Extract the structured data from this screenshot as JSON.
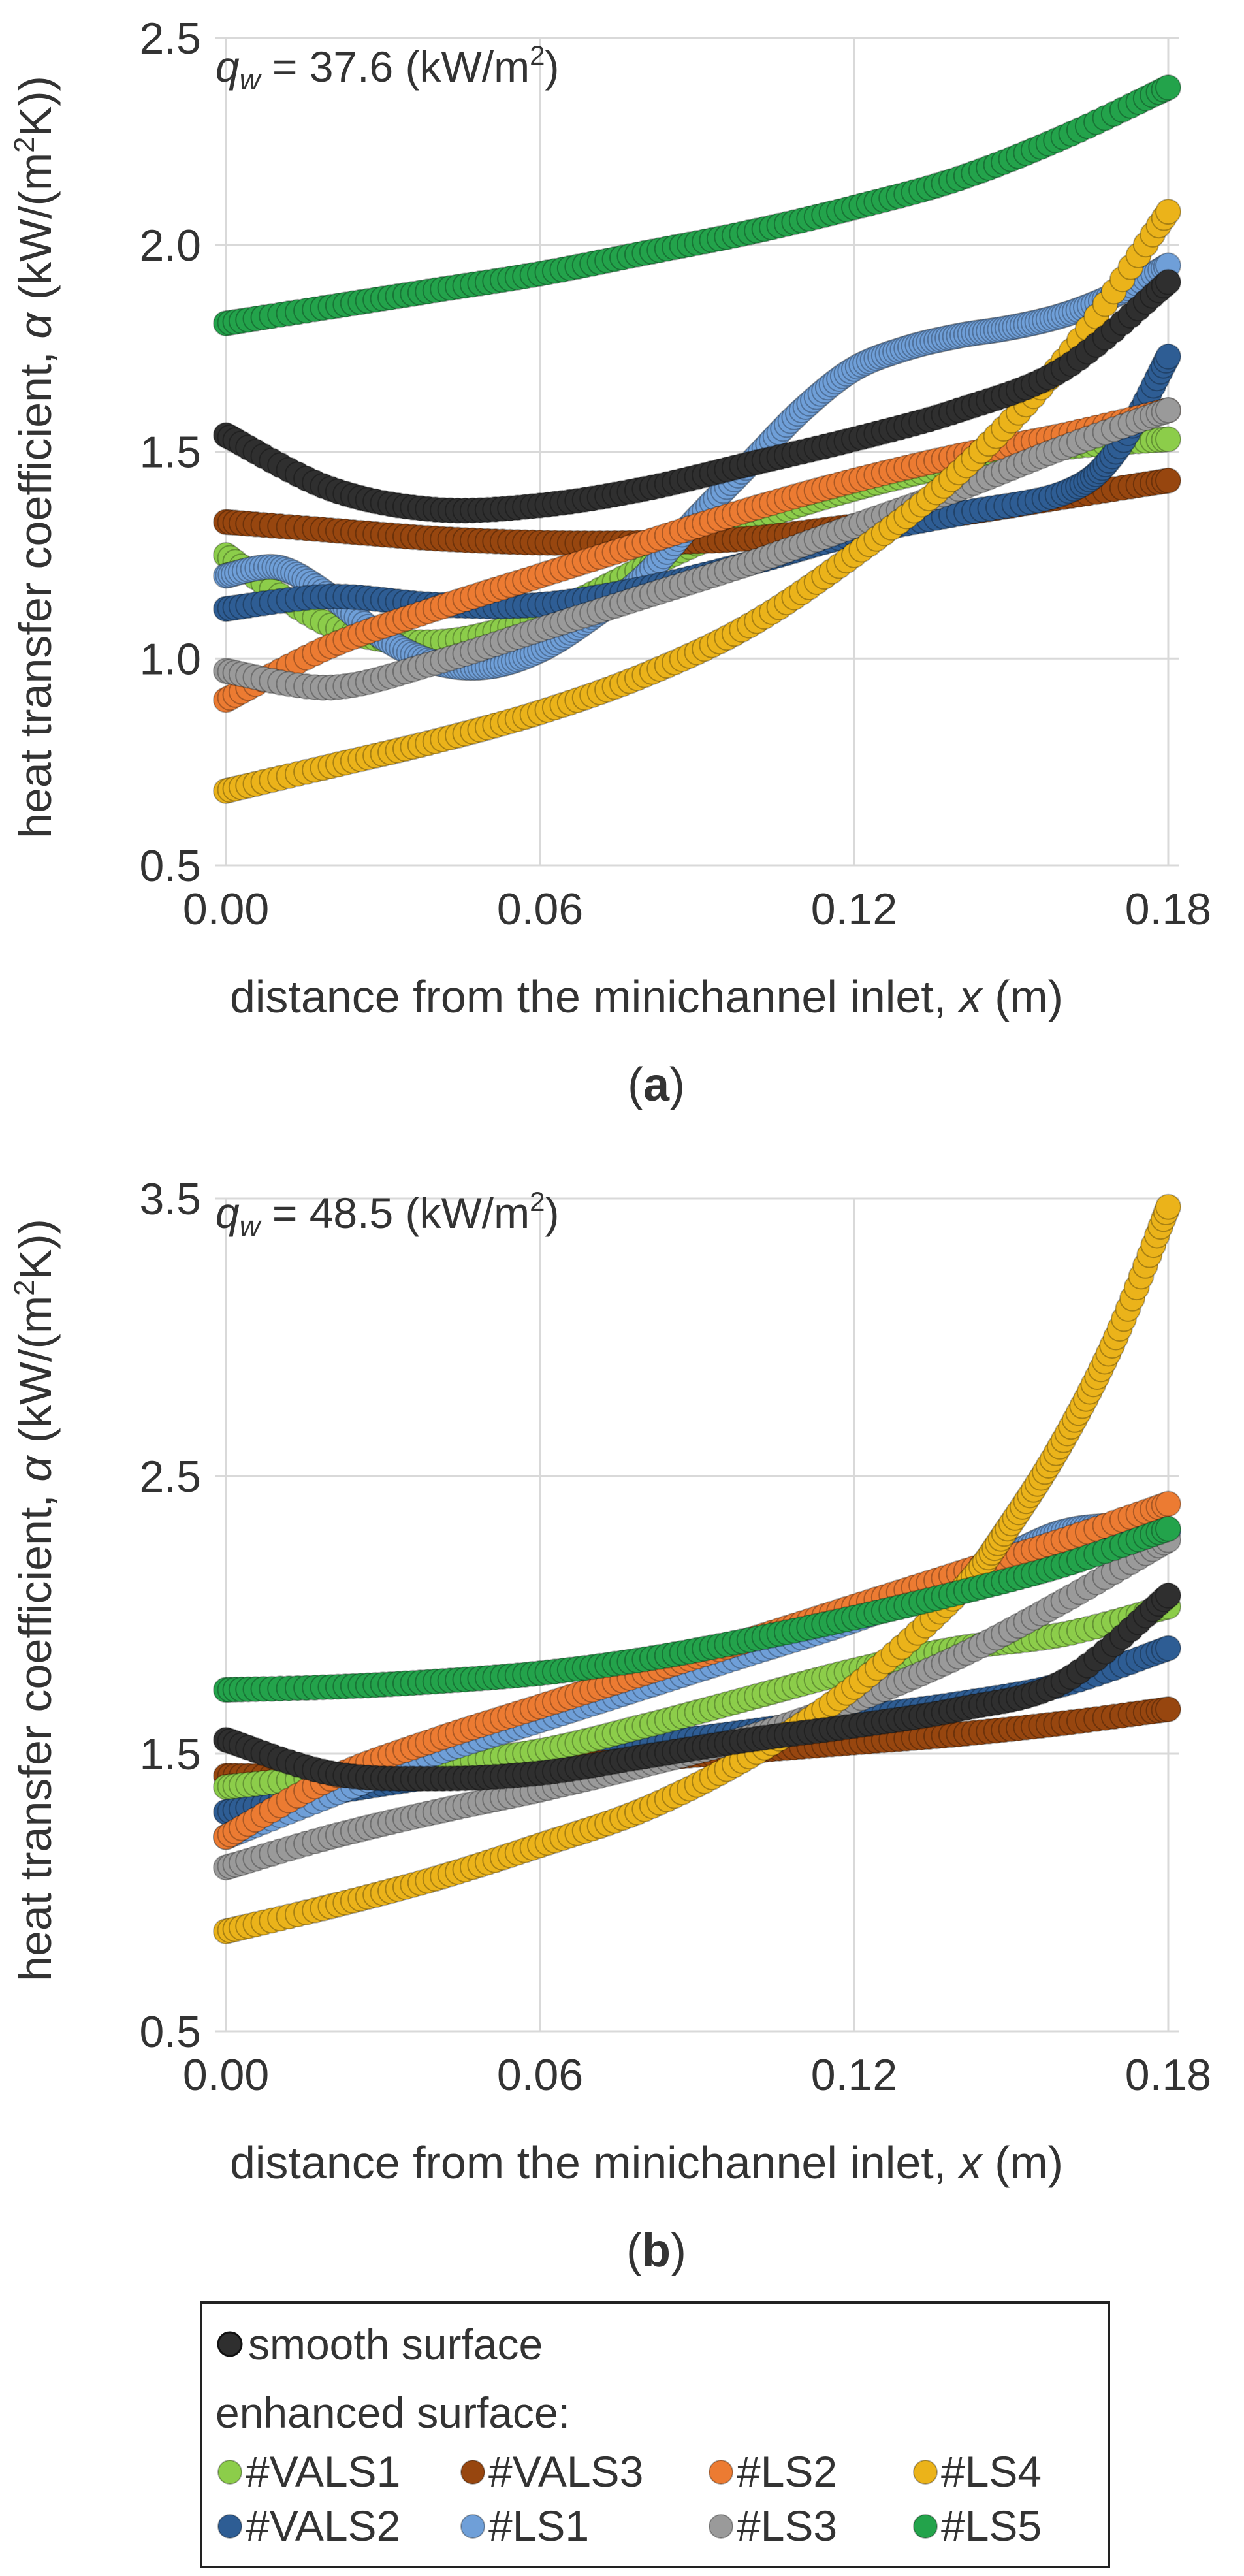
{
  "chart_data": [
    {
      "panel": "a",
      "type": "scatter",
      "annotation": {
        "q": "q",
        "sub": "w",
        "text": " = 37.6 (kW/m",
        "sup": "2",
        "end": ")"
      },
      "xlabel": {
        "text": "distance from the minichannel inlet, ",
        "var": "x",
        "unit": " (m)"
      },
      "ylabel": {
        "text": "heat transfer coefficient, ",
        "var": "α",
        "unit": " (kW/(m",
        "sup": "2",
        "end": "K))"
      },
      "xlim": [
        -0.002,
        0.182
      ],
      "ylim": [
        0.5,
        2.5
      ],
      "xticks": [
        "0.00",
        "0.06",
        "0.12",
        "0.18"
      ],
      "xtick_values": [
        0.0,
        0.06,
        0.12,
        0.18
      ],
      "yticks": [
        "0.5",
        "1.0",
        "1.5",
        "2.0",
        "2.5"
      ],
      "ytick_values": [
        0.5,
        1.0,
        1.5,
        2.0,
        2.5
      ],
      "series": [
        {
          "name": "#VALS1",
          "x": [
            0,
            0.02,
            0.04,
            0.06,
            0.08,
            0.1,
            0.12,
            0.14,
            0.16,
            0.18
          ],
          "y": [
            1.25,
            1.08,
            1.04,
            1.1,
            1.22,
            1.33,
            1.41,
            1.47,
            1.51,
            1.53
          ]
        },
        {
          "name": "#VALS3",
          "x": [
            0,
            0.02,
            0.04,
            0.06,
            0.08,
            0.1,
            0.12,
            0.14,
            0.16,
            0.18
          ],
          "y": [
            1.33,
            1.31,
            1.29,
            1.28,
            1.28,
            1.29,
            1.32,
            1.35,
            1.39,
            1.43
          ]
        },
        {
          "name": "#LS1",
          "x": [
            0,
            0.01,
            0.02,
            0.03,
            0.04,
            0.05,
            0.06,
            0.07,
            0.08,
            0.09,
            0.1,
            0.11,
            0.12,
            0.13,
            0.14,
            0.15,
            0.16,
            0.17,
            0.18
          ],
          "y": [
            1.2,
            1.22,
            1.15,
            1.05,
            0.99,
            0.98,
            1.02,
            1.1,
            1.2,
            1.34,
            1.47,
            1.6,
            1.7,
            1.75,
            1.78,
            1.8,
            1.83,
            1.88,
            1.95
          ]
        },
        {
          "name": "#VALS2",
          "x": [
            0,
            0.02,
            0.04,
            0.06,
            0.08,
            0.1,
            0.12,
            0.14,
            0.16,
            0.17,
            0.18
          ],
          "y": [
            1.12,
            1.15,
            1.13,
            1.13,
            1.17,
            1.23,
            1.3,
            1.35,
            1.4,
            1.5,
            1.73
          ]
        },
        {
          "name": "#LS2",
          "x": [
            0,
            0.02,
            0.04,
            0.06,
            0.08,
            0.1,
            0.12,
            0.14,
            0.16,
            0.18
          ],
          "y": [
            0.9,
            1.03,
            1.12,
            1.2,
            1.28,
            1.36,
            1.43,
            1.49,
            1.54,
            1.6
          ]
        },
        {
          "name": "#LS3",
          "x": [
            0,
            0.02,
            0.04,
            0.06,
            0.08,
            0.1,
            0.12,
            0.14,
            0.16,
            0.18
          ],
          "y": [
            0.97,
            0.93,
            0.99,
            1.07,
            1.15,
            1.23,
            1.32,
            1.41,
            1.51,
            1.6
          ]
        },
        {
          "name": "#LS4",
          "x": [
            0,
            0.02,
            0.04,
            0.06,
            0.08,
            0.1,
            0.12,
            0.14,
            0.16,
            0.18
          ],
          "y": [
            0.68,
            0.74,
            0.8,
            0.87,
            0.96,
            1.08,
            1.25,
            1.45,
            1.72,
            2.08
          ]
        },
        {
          "name": "smooth surface",
          "x": [
            0,
            0.02,
            0.04,
            0.06,
            0.08,
            0.1,
            0.12,
            0.14,
            0.16,
            0.18
          ],
          "y": [
            1.54,
            1.41,
            1.36,
            1.37,
            1.41,
            1.47,
            1.53,
            1.6,
            1.7,
            1.91
          ]
        },
        {
          "name": "#LS5",
          "x": [
            0,
            0.02,
            0.04,
            0.06,
            0.08,
            0.1,
            0.12,
            0.14,
            0.16,
            0.18
          ],
          "y": [
            1.81,
            1.85,
            1.89,
            1.93,
            1.98,
            2.03,
            2.09,
            2.16,
            2.26,
            2.38
          ]
        }
      ]
    },
    {
      "panel": "b",
      "type": "scatter",
      "annotation": {
        "q": "q",
        "sub": "w",
        "text": " = 48.5 (kW/m",
        "sup": "2",
        "end": ")"
      },
      "xlabel": {
        "text": "distance from the minichannel inlet, ",
        "var": "x",
        "unit": " (m)"
      },
      "ylabel": {
        "text": "heat transfer coefficient, ",
        "var": "α",
        "unit": " (kW/(m",
        "sup": "2",
        "end": "K))"
      },
      "xlim": [
        -0.002,
        0.182
      ],
      "ylim": [
        0.5,
        3.5
      ],
      "xticks": [
        "0.00",
        "0.06",
        "0.12",
        "0.18"
      ],
      "xtick_values": [
        0.0,
        0.06,
        0.12,
        0.18
      ],
      "yticks": [
        "0.5",
        "1.5",
        "2.5",
        "3.5"
      ],
      "ytick_values": [
        0.5,
        1.5,
        2.5,
        3.5
      ],
      "series": [
        {
          "name": "#VALS2",
          "x": [
            0,
            0.02,
            0.04,
            0.06,
            0.08,
            0.1,
            0.12,
            0.14,
            0.16,
            0.18
          ],
          "y": [
            1.29,
            1.36,
            1.42,
            1.48,
            1.53,
            1.58,
            1.63,
            1.68,
            1.75,
            1.88
          ]
        },
        {
          "name": "#VALS3",
          "x": [
            0,
            0.02,
            0.04,
            0.06,
            0.08,
            0.1,
            0.12,
            0.14,
            0.16,
            0.18
          ],
          "y": [
            1.42,
            1.42,
            1.43,
            1.45,
            1.48,
            1.51,
            1.54,
            1.57,
            1.61,
            1.66
          ]
        },
        {
          "name": "#VALS1",
          "x": [
            0,
            0.02,
            0.04,
            0.06,
            0.08,
            0.1,
            0.12,
            0.14,
            0.16,
            0.18
          ],
          "y": [
            1.38,
            1.42,
            1.46,
            1.51,
            1.6,
            1.7,
            1.8,
            1.88,
            1.93,
            2.03
          ]
        },
        {
          "name": "#LS1",
          "x": [
            0,
            0.02,
            0.04,
            0.06,
            0.08,
            0.1,
            0.12,
            0.14,
            0.15,
            0.16,
            0.17,
            0.18
          ],
          "y": [
            1.2,
            1.35,
            1.5,
            1.62,
            1.74,
            1.86,
            1.98,
            2.13,
            2.22,
            2.3,
            2.32,
            2.3
          ]
        },
        {
          "name": "#LS2",
          "x": [
            0,
            0.02,
            0.04,
            0.06,
            0.08,
            0.1,
            0.12,
            0.14,
            0.16,
            0.18
          ],
          "y": [
            1.2,
            1.41,
            1.55,
            1.67,
            1.79,
            1.91,
            2.03,
            2.15,
            2.27,
            2.4
          ]
        },
        {
          "name": "#LS3",
          "x": [
            0,
            0.02,
            0.04,
            0.06,
            0.08,
            0.1,
            0.12,
            0.14,
            0.16,
            0.18
          ],
          "y": [
            1.09,
            1.2,
            1.29,
            1.37,
            1.46,
            1.56,
            1.69,
            1.85,
            2.05,
            2.27
          ]
        },
        {
          "name": "#LS4",
          "x": [
            0,
            0.02,
            0.04,
            0.06,
            0.08,
            0.1,
            0.12,
            0.14,
            0.15,
            0.16,
            0.17,
            0.18
          ],
          "y": [
            0.86,
            0.95,
            1.05,
            1.17,
            1.3,
            1.49,
            1.74,
            2.08,
            2.33,
            2.63,
            3.0,
            3.47
          ]
        },
        {
          "name": "smooth surface",
          "x": [
            0,
            0.02,
            0.04,
            0.06,
            0.08,
            0.1,
            0.12,
            0.14,
            0.16,
            0.18
          ],
          "y": [
            1.55,
            1.43,
            1.41,
            1.43,
            1.49,
            1.55,
            1.6,
            1.66,
            1.76,
            2.07
          ]
        },
        {
          "name": "#LS5",
          "x": [
            0,
            0.02,
            0.04,
            0.06,
            0.08,
            0.1,
            0.12,
            0.14,
            0.16,
            0.18
          ],
          "y": [
            1.73,
            1.74,
            1.76,
            1.79,
            1.84,
            1.91,
            1.99,
            2.08,
            2.18,
            2.31
          ]
        }
      ]
    }
  ],
  "captions": {
    "a": "a",
    "b": "b",
    "paren_open": "(",
    "paren_close": ")"
  },
  "legend": {
    "smooth_label": "smooth surface",
    "enhanced_label": "enhanced surface:",
    "items": [
      "#VALS1",
      "#VALS3",
      "#LS2",
      "#LS4",
      "#VALS2",
      "#LS1",
      "#LS3",
      "#LS5"
    ]
  },
  "colors": {
    "smooth surface": "#2f2f2f",
    "#VALS1": "#8ccd4a",
    "#VALS2": "#2e5d94",
    "#VALS3": "#97460f",
    "#LS1": "#6f9fd8",
    "#LS2": "#ec7b32",
    "#LS3": "#9a9a9a",
    "#LS4": "#ebb31a",
    "#LS5": "#23a34b"
  }
}
